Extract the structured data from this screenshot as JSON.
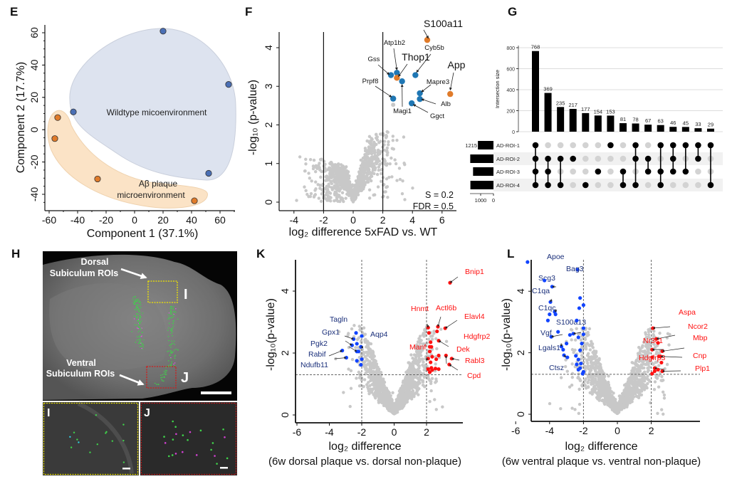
{
  "panels": {
    "E": "E",
    "F": "F",
    "G": "G",
    "H": "H",
    "K": "K",
    "L": "L"
  },
  "colors": {
    "wildtype": "#4a6fb5",
    "plaque": "#e07b2a",
    "f_blue": "#1f77b4",
    "f_orange": "#e07b2a",
    "grey": "#c8c8c8",
    "down": "#1144ff",
    "up": "#ff1111",
    "down_label": "#1a2f7a"
  },
  "chart_data": [
    {
      "id": "E",
      "type": "scatter",
      "xlabel": "Component 1 (37.1%)",
      "ylabel": "Component 2 (17.7%)",
      "xlim": [
        -65,
        72
      ],
      "ylim": [
        -50,
        65
      ],
      "xticks": [
        -60,
        -40,
        -20,
        0,
        20,
        40,
        60
      ],
      "yticks": [
        -40,
        -20,
        0,
        20,
        40,
        60
      ],
      "groups": [
        {
          "name": "Wildtype micoenvironment",
          "color": "wildtype",
          "points": [
            [
              20,
              61
            ],
            [
              66,
              28
            ],
            [
              -43,
              11
            ],
            [
              52,
              -27
            ]
          ]
        },
        {
          "name": "Aβ plaque microenvironment",
          "name_lines": [
            "Aβ plaque",
            "microenvironment"
          ],
          "color": "plaque",
          "points": [
            [
              -54,
              7.5
            ],
            [
              -56,
              -5.5
            ],
            [
              -26,
              -30.5
            ],
            [
              42,
              -44
            ]
          ]
        }
      ]
    },
    {
      "id": "F",
      "type": "scatter",
      "xlabel": "log₂ difference 5xFAD vs. WT",
      "ylabel": "-log₁₀ (p-value)",
      "xlim": [
        -5,
        7
      ],
      "ylim": [
        -0.2,
        4.4
      ],
      "xticks": [
        -4,
        -2,
        0,
        2,
        4,
        6
      ],
      "yticks": [
        0,
        1,
        2,
        3,
        4
      ],
      "thresholds_x": [
        -2,
        2
      ],
      "annotation": [
        "S = 0.2",
        "FDR = 0.5"
      ],
      "points": [
        {
          "label": "S100a11",
          "x": 5.0,
          "y": 4.2,
          "color": "f_orange"
        },
        {
          "label": "Atp1b2",
          "x": 2.95,
          "y": 3.35,
          "color": "f_blue"
        },
        {
          "label": "Thop1",
          "x": 2.95,
          "y": 3.22,
          "color": "f_orange"
        },
        {
          "label": "Gss",
          "x": 2.55,
          "y": 3.29,
          "color": "f_blue"
        },
        {
          "label": "Magi1",
          "x": 3.3,
          "y": 3.13,
          "color": "f_blue"
        },
        {
          "label": "Cyb5b",
          "x": 4.2,
          "y": 3.29,
          "color": "f_blue"
        },
        {
          "label": "Mapre3",
          "x": 4.5,
          "y": 2.82,
          "color": "f_blue"
        },
        {
          "label": "App",
          "x": 6.55,
          "y": 2.8,
          "color": "f_orange"
        },
        {
          "label": "Alb",
          "x": 4.5,
          "y": 2.67,
          "color": "f_blue"
        },
        {
          "label": "Prpf8",
          "x": 2.7,
          "y": 2.68,
          "color": "f_blue"
        },
        {
          "label": "Ggct",
          "x": 3.95,
          "y": 2.56,
          "color": "f_blue"
        },
        {
          "label": "",
          "x": 2.7,
          "y": 2.52,
          "color": "grey"
        }
      ]
    },
    {
      "id": "G",
      "type": "bar",
      "ylabel": "Intersection size",
      "ylim": [
        0,
        850
      ],
      "yticks": [
        0,
        200,
        400,
        600,
        800
      ],
      "values": [
        768,
        369,
        235,
        217,
        177,
        154,
        153,
        81,
        78,
        67,
        63,
        46,
        45,
        33,
        29
      ],
      "sets": [
        "AD-ROI-1",
        "AD-ROI-2",
        "AD-ROI-3",
        "AD-ROI-4"
      ],
      "set_sizes": [
        1215,
        1813,
        1593,
        1800
      ],
      "set_size_label": "1215",
      "set_axis_ticks": [
        "1000",
        "0"
      ],
      "memberships": [
        [
          1,
          2,
          3,
          4
        ],
        [
          2,
          3,
          4
        ],
        [
          2,
          4
        ],
        [
          2
        ],
        [
          4
        ],
        [
          3
        ],
        [
          1
        ],
        [
          3,
          4
        ],
        [
          1,
          2,
          4
        ],
        [
          2,
          3
        ],
        [
          1,
          3,
          4
        ],
        [
          1,
          2,
          3
        ],
        [
          1,
          3
        ],
        [
          1,
          2
        ],
        [
          1,
          4
        ]
      ]
    },
    {
      "id": "K",
      "type": "scatter",
      "xlabel": "log₂ difference",
      "xlabel2": "(6w dorsal plaque vs. dorsal non-plaque)",
      "ylabel": "-log₁₀(p-value)",
      "xlim": [
        -6.2,
        4.2
      ],
      "ylim": [
        -0.25,
        5.0
      ],
      "xticks": [
        -6,
        -4,
        -2,
        0,
        2
      ],
      "yticks": [
        0,
        2,
        4
      ],
      "thresholds_x": [
        -2,
        2
      ],
      "threshold_y": 1.3,
      "points": [
        {
          "label": "Bnip1",
          "x": 3.45,
          "y": 4.27,
          "color": "up"
        },
        {
          "label": "Hnmt",
          "x": 2.1,
          "y": 2.82,
          "color": "up"
        },
        {
          "label": "Actl6b",
          "x": 2.7,
          "y": 2.85,
          "color": "up"
        },
        {
          "label": "Elavl4",
          "x": 3.15,
          "y": 2.8,
          "color": "up"
        },
        {
          "label": "Hdgfrp2",
          "x": 2.75,
          "y": 2.4,
          "color": "up"
        },
        {
          "label": "Manf",
          "x": 2.1,
          "y": 1.82,
          "color": "up"
        },
        {
          "label": "Dek",
          "x": 3.2,
          "y": 1.92,
          "color": "up"
        },
        {
          "label": "Rabl3",
          "x": 3.55,
          "y": 1.82,
          "color": "up"
        },
        {
          "label": "Cpd",
          "x": 3.4,
          "y": 1.63,
          "color": "up"
        },
        {
          "label": "",
          "x": 2.15,
          "y": 2.65,
          "color": "up"
        },
        {
          "label": "",
          "x": 2.65,
          "y": 2.7,
          "color": "up"
        },
        {
          "label": "",
          "x": 2.25,
          "y": 2.35,
          "color": "up"
        },
        {
          "label": "",
          "x": 2.2,
          "y": 2.2,
          "color": "up"
        },
        {
          "label": "",
          "x": 2.3,
          "y": 2.2,
          "color": "up"
        },
        {
          "label": "",
          "x": 2.2,
          "y": 2.05,
          "color": "up"
        },
        {
          "label": "",
          "x": 2.35,
          "y": 1.88,
          "color": "up"
        },
        {
          "label": "",
          "x": 2.75,
          "y": 1.92,
          "color": "up"
        },
        {
          "label": "",
          "x": 2.6,
          "y": 1.8,
          "color": "up"
        },
        {
          "label": "",
          "x": 2.25,
          "y": 1.7,
          "color": "up"
        },
        {
          "label": "",
          "x": 2.3,
          "y": 1.52,
          "color": "up"
        },
        {
          "label": "",
          "x": 2.1,
          "y": 1.48,
          "color": "up"
        },
        {
          "label": "",
          "x": 2.35,
          "y": 1.45,
          "color": "up"
        },
        {
          "label": "",
          "x": 2.55,
          "y": 1.5,
          "color": "up"
        },
        {
          "label": "",
          "x": 2.75,
          "y": 1.48,
          "color": "up"
        },
        {
          "label": "",
          "x": 2.2,
          "y": 1.38,
          "color": "up"
        },
        {
          "label": "Tagln",
          "x": -2.5,
          "y": 2.45,
          "color": "down"
        },
        {
          "label": "Gpx1",
          "x": -2.6,
          "y": 2.25,
          "color": "down"
        },
        {
          "label": "Pgk2",
          "x": -2.3,
          "y": 2.05,
          "color": "down"
        },
        {
          "label": "Rabif",
          "x": -3.2,
          "y": 2.08,
          "color": "down"
        },
        {
          "label": "Ndufb11",
          "x": -2.95,
          "y": 1.85,
          "color": "down"
        },
        {
          "label": "Aqp4",
          "x": -2.05,
          "y": 2.2,
          "color": "down"
        },
        {
          "label": "",
          "x": -2.35,
          "y": 2.65,
          "color": "down"
        },
        {
          "label": "",
          "x": -2.0,
          "y": 2.55,
          "color": "down"
        },
        {
          "label": "",
          "x": -2.3,
          "y": 2.3,
          "color": "down"
        },
        {
          "label": "",
          "x": -2.2,
          "y": 2.05,
          "color": "down"
        },
        {
          "label": "",
          "x": -2.3,
          "y": 1.75,
          "color": "down"
        },
        {
          "label": "",
          "x": -2.0,
          "y": 1.8,
          "color": "down"
        },
        {
          "label": "",
          "x": -2.05,
          "y": 1.62,
          "color": "down"
        }
      ]
    },
    {
      "id": "L",
      "type": "scatter",
      "xlabel": "log₂ difference",
      "xlabel2": "(6w ventral plaque vs. ventral non-plaque)",
      "ylabel": "-log₁₀(p-value)",
      "xlim": [
        -6.2,
        3.6
      ],
      "ylim": [
        -0.25,
        5.1
      ],
      "xticks": [
        -6,
        -4,
        -2,
        0,
        2
      ],
      "yticks": [
        0,
        2,
        4
      ],
      "thresholds_x": [
        -2,
        2
      ],
      "threshold_y": 1.3,
      "points": [
        {
          "label": "Apoe",
          "x": -5.3,
          "y": 4.95,
          "color": "down"
        },
        {
          "label": "Bag3",
          "x": -2.35,
          "y": 4.7,
          "color": "down"
        },
        {
          "label": "Scg3",
          "x": -3.85,
          "y": 4.15,
          "color": "down"
        },
        {
          "label": "C1qa",
          "x": -3.95,
          "y": 3.65,
          "color": "down"
        },
        {
          "label": "C1qc",
          "x": -3.7,
          "y": 3.33,
          "color": "down"
        },
        {
          "label": "S100a13",
          "x": -2.6,
          "y": 2.62,
          "color": "down"
        },
        {
          "label": "Vgf",
          "x": -3.9,
          "y": 2.52,
          "color": "down"
        },
        {
          "label": "Lgals1",
          "x": -3.3,
          "y": 2.2,
          "color": "down"
        },
        {
          "label": "Ctsz",
          "x": -3.15,
          "y": 1.92,
          "color": "down"
        },
        {
          "label": "",
          "x": -4.3,
          "y": 4.35,
          "color": "down"
        },
        {
          "label": "",
          "x": -2.2,
          "y": 3.78,
          "color": "down"
        },
        {
          "label": "",
          "x": -2.25,
          "y": 3.45,
          "color": "down"
        },
        {
          "label": "",
          "x": -2.0,
          "y": 3.55,
          "color": "down"
        },
        {
          "label": "",
          "x": -4.0,
          "y": 3.25,
          "color": "down"
        },
        {
          "label": "",
          "x": -3.65,
          "y": 3.25,
          "color": "down"
        },
        {
          "label": "",
          "x": -4.1,
          "y": 3.05,
          "color": "down"
        },
        {
          "label": "",
          "x": -2.4,
          "y": 3.05,
          "color": "down"
        },
        {
          "label": "",
          "x": -2.0,
          "y": 2.8,
          "color": "down"
        },
        {
          "label": "",
          "x": -3.5,
          "y": 2.68,
          "color": "down"
        },
        {
          "label": "",
          "x": -2.8,
          "y": 2.58,
          "color": "down"
        },
        {
          "label": "",
          "x": -2.0,
          "y": 2.6,
          "color": "down"
        },
        {
          "label": "",
          "x": -2.3,
          "y": 2.5,
          "color": "down"
        },
        {
          "label": "",
          "x": -3.0,
          "y": 2.3,
          "color": "down"
        },
        {
          "label": "",
          "x": -3.2,
          "y": 2.1,
          "color": "down"
        },
        {
          "label": "",
          "x": -2.1,
          "y": 2.3,
          "color": "down"
        },
        {
          "label": "",
          "x": -2.2,
          "y": 2.08,
          "color": "down"
        },
        {
          "label": "",
          "x": -2.45,
          "y": 1.9,
          "color": "down"
        },
        {
          "label": "",
          "x": -2.95,
          "y": 1.85,
          "color": "down"
        },
        {
          "label": "",
          "x": -2.3,
          "y": 1.78,
          "color": "down"
        },
        {
          "label": "",
          "x": -2.15,
          "y": 1.65,
          "color": "down"
        },
        {
          "label": "",
          "x": -2.4,
          "y": 1.62,
          "color": "down"
        },
        {
          "label": "",
          "x": -2.2,
          "y": 1.5,
          "color": "down"
        },
        {
          "label": "",
          "x": -2.0,
          "y": 1.38,
          "color": "down"
        },
        {
          "label": "",
          "x": -2.3,
          "y": 1.45,
          "color": "down"
        },
        {
          "label": "",
          "x": -2.05,
          "y": 1.32,
          "color": "down"
        },
        {
          "label": "Aspa",
          "x": 2.1,
          "y": 2.8,
          "color": "up"
        },
        {
          "label": "Ncor2",
          "x": 2.3,
          "y": 2.45,
          "color": "up"
        },
        {
          "label": "Mbp",
          "x": 2.65,
          "y": 2.05,
          "color": "up"
        },
        {
          "label": "Nr3c1",
          "x": 2.05,
          "y": 2.1,
          "color": "up"
        },
        {
          "label": "Hdgfrp3",
          "x": 2.2,
          "y": 1.5,
          "color": "up"
        },
        {
          "label": "Cnp",
          "x": 2.55,
          "y": 1.88,
          "color": "up"
        },
        {
          "label": "Plp1",
          "x": 2.65,
          "y": 1.4,
          "color": "up"
        },
        {
          "label": "",
          "x": 2.4,
          "y": 2.32,
          "color": "up"
        },
        {
          "label": "",
          "x": 2.05,
          "y": 1.85,
          "color": "up"
        },
        {
          "label": "",
          "x": 2.45,
          "y": 1.88,
          "color": "up"
        },
        {
          "label": "",
          "x": 2.6,
          "y": 1.68,
          "color": "up"
        },
        {
          "label": "",
          "x": 2.4,
          "y": 1.45,
          "color": "up"
        },
        {
          "label": "",
          "x": 2.2,
          "y": 1.4,
          "color": "up"
        },
        {
          "label": "",
          "x": 2.05,
          "y": 1.32,
          "color": "up"
        }
      ]
    }
  ],
  "image_panel": {
    "dorsal_label": [
      "Dorsal",
      "Subiculum ROIs"
    ],
    "ventral_label": [
      "Ventral",
      "Subiculum ROIs"
    ],
    "inset_i": "I",
    "inset_j": "J"
  }
}
